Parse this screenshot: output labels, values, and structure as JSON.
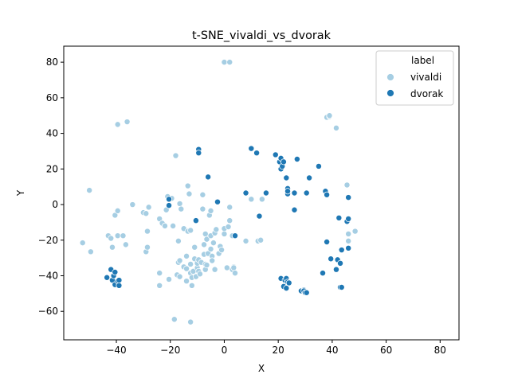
{
  "chart_data": {
    "type": "scatter",
    "title": "t-SNE_vivaldi_vs_dvorak",
    "xlabel": "X",
    "ylabel": "Y",
    "xlim": [
      -59.5,
      87
    ],
    "ylim": [
      -76,
      89
    ],
    "xticks": [
      -40,
      -20,
      0,
      20,
      40,
      60,
      80
    ],
    "yticks": [
      -60,
      -40,
      -20,
      0,
      20,
      40,
      60,
      80
    ],
    "xtick_labels": [
      "−40",
      "−20",
      "0",
      "20",
      "40",
      "60",
      "80"
    ],
    "ytick_labels": [
      "−60",
      "−40",
      "−20",
      "0",
      "20",
      "40",
      "60",
      "80"
    ],
    "grid": false,
    "legend": {
      "title": "label",
      "placement": "top-right",
      "entries": [
        {
          "name": "vivaldi",
          "color": "#a6cee3"
        },
        {
          "name": "dvorak",
          "color": "#1f78b4"
        }
      ]
    },
    "series": [
      {
        "name": "vivaldi",
        "color": "#a6cee3",
        "points": [
          [
            -52.5,
            -21.5
          ],
          [
            -50,
            8
          ],
          [
            -49.5,
            -26.5
          ],
          [
            -43,
            -17.5
          ],
          [
            -42,
            -19
          ],
          [
            -41.5,
            -24
          ],
          [
            -40.5,
            -6
          ],
          [
            -39.5,
            -17.5
          ],
          [
            -39.5,
            -3.5
          ],
          [
            -39.5,
            45
          ],
          [
            -37.5,
            -17.5
          ],
          [
            -36.5,
            -22.5
          ],
          [
            -36,
            46.5
          ],
          [
            -34,
            0
          ],
          [
            -30,
            -4.5
          ],
          [
            -29,
            -5
          ],
          [
            -29,
            -26.5
          ],
          [
            -28.5,
            -24
          ],
          [
            -28.5,
            -15
          ],
          [
            -28,
            -1.5
          ],
          [
            -24,
            -38.5
          ],
          [
            -24,
            -45.5
          ],
          [
            -24,
            -8
          ],
          [
            -23,
            -10.5
          ],
          [
            -22,
            -12
          ],
          [
            -21.5,
            -3
          ],
          [
            -21,
            4.5
          ],
          [
            -20.5,
            -42
          ],
          [
            -19.5,
            3.5
          ],
          [
            -19,
            -12
          ],
          [
            -18.5,
            -64.5
          ],
          [
            -18,
            27.5
          ],
          [
            -17.5,
            -39.5
          ],
          [
            -17,
            -32.5
          ],
          [
            -17,
            -20.5
          ],
          [
            -16.5,
            0.5
          ],
          [
            -16.5,
            -31.5
          ],
          [
            -16,
            -2.5
          ],
          [
            -16.5,
            -40.5
          ],
          [
            -15,
            -13.5
          ],
          [
            -15,
            -35
          ],
          [
            -14,
            -36
          ],
          [
            -14,
            -29
          ],
          [
            -14,
            -43
          ],
          [
            -13.5,
            -15
          ],
          [
            -13.5,
            10.5
          ],
          [
            -13,
            6
          ],
          [
            -12.5,
            -33.5
          ],
          [
            -12.5,
            -38.5
          ],
          [
            -12.5,
            -14.5
          ],
          [
            -12.5,
            -66
          ],
          [
            -12,
            -45.5
          ],
          [
            -12,
            -41
          ],
          [
            -11.5,
            -37.5
          ],
          [
            -11,
            -30.5
          ],
          [
            -11,
            -24
          ],
          [
            -10.5,
            -40.5
          ],
          [
            -10,
            -35.5
          ],
          [
            -10,
            -33
          ],
          [
            -9.5,
            -31
          ],
          [
            -9.5,
            -37.5
          ],
          [
            -9,
            -39
          ],
          [
            -8.5,
            -32.5
          ],
          [
            -8,
            -2.5
          ],
          [
            -8,
            5.5
          ],
          [
            -7.5,
            -22.5
          ],
          [
            -7.5,
            -28
          ],
          [
            -7,
            -33.5
          ],
          [
            -7,
            -16.5
          ],
          [
            -7,
            -36.5
          ],
          [
            -6.5,
            -19.5
          ],
          [
            -6.5,
            -34
          ],
          [
            -6,
            -27.5
          ],
          [
            -5.5,
            -6
          ],
          [
            -5,
            -3.5
          ],
          [
            -5,
            -17.5
          ],
          [
            -5,
            -25
          ],
          [
            -4.5,
            -29
          ],
          [
            -4.5,
            -31.5
          ],
          [
            -4,
            -21.5
          ],
          [
            -3.5,
            -36.5
          ],
          [
            -3.5,
            -16
          ],
          [
            -3,
            -14
          ],
          [
            -2,
            -27.5
          ],
          [
            -1.5,
            -23.5
          ],
          [
            -1,
            -25.5
          ],
          [
            0,
            -16.5
          ],
          [
            0,
            -13.5
          ],
          [
            0,
            80
          ],
          [
            1,
            -35.5
          ],
          [
            1.5,
            -12.5
          ],
          [
            2,
            -1.5
          ],
          [
            2,
            80
          ],
          [
            2,
            -9
          ],
          [
            3,
            -17.5
          ],
          [
            3,
            -36.5
          ],
          [
            3.5,
            -35
          ],
          [
            3.5,
            -35.5
          ],
          [
            4,
            -38.5
          ],
          [
            4,
            -17.5
          ],
          [
            8,
            -20.5
          ],
          [
            10,
            3
          ],
          [
            12.5,
            -20.5
          ],
          [
            13.5,
            -20
          ],
          [
            14,
            3
          ],
          [
            38,
            49
          ],
          [
            39,
            49.5
          ],
          [
            39,
            50
          ],
          [
            41.5,
            43
          ],
          [
            45.5,
            11
          ],
          [
            46,
            -20.5
          ],
          [
            46,
            -16.5
          ],
          [
            48.5,
            -15
          ]
        ]
      },
      {
        "name": "dvorak",
        "color": "#1f78b4",
        "points": [
          [
            -43.5,
            -41
          ],
          [
            -42,
            -36.5
          ],
          [
            -41.5,
            -42.5
          ],
          [
            -41,
            -40
          ],
          [
            -40.5,
            -45
          ],
          [
            -40.5,
            -38
          ],
          [
            -39.5,
            -43
          ],
          [
            -39,
            -45.5
          ],
          [
            -39,
            -42.5
          ],
          [
            -20.5,
            3
          ],
          [
            -20.5,
            -0.5
          ],
          [
            -10.5,
            -9
          ],
          [
            -9.5,
            31
          ],
          [
            -9.5,
            29
          ],
          [
            -6,
            15.5
          ],
          [
            -2.5,
            1.5
          ],
          [
            4,
            -17.5
          ],
          [
            8,
            6.5
          ],
          [
            10,
            31.5
          ],
          [
            12,
            29
          ],
          [
            13,
            -6.5
          ],
          [
            15.5,
            6.5
          ],
          [
            19,
            28
          ],
          [
            20.5,
            24
          ],
          [
            21,
            26
          ],
          [
            21,
            20
          ],
          [
            21,
            -41.5
          ],
          [
            21.5,
            21.5
          ],
          [
            22,
            -46
          ],
          [
            22,
            24
          ],
          [
            22.5,
            -42.5
          ],
          [
            23,
            -41.5
          ],
          [
            23,
            15
          ],
          [
            23,
            -47
          ],
          [
            23.5,
            -43.5
          ],
          [
            23.5,
            6
          ],
          [
            23.5,
            9
          ],
          [
            23.5,
            7.5
          ],
          [
            24,
            -44
          ],
          [
            26,
            6.5
          ],
          [
            26,
            -3
          ],
          [
            27,
            25.5
          ],
          [
            28.5,
            -48.5
          ],
          [
            29.5,
            -48
          ],
          [
            29.5,
            -48.5
          ],
          [
            30,
            -49.5
          ],
          [
            30.5,
            -49.5
          ],
          [
            30.5,
            6.5
          ],
          [
            31.5,
            15
          ],
          [
            35,
            21.5
          ],
          [
            36.5,
            -38.5
          ],
          [
            37.5,
            7.5
          ],
          [
            38,
            5.5
          ],
          [
            38,
            -21
          ],
          [
            39.5,
            -30.5
          ],
          [
            41.5,
            -36.5
          ],
          [
            42,
            -31
          ],
          [
            42.5,
            -7.5
          ],
          [
            43,
            -46.5
          ],
          [
            43,
            -33
          ],
          [
            43.5,
            -25.5
          ],
          [
            43.5,
            -46.5
          ],
          [
            45.5,
            -9.5
          ],
          [
            46,
            -24.5
          ],
          [
            46,
            -8
          ],
          [
            46,
            4
          ]
        ]
      }
    ]
  }
}
